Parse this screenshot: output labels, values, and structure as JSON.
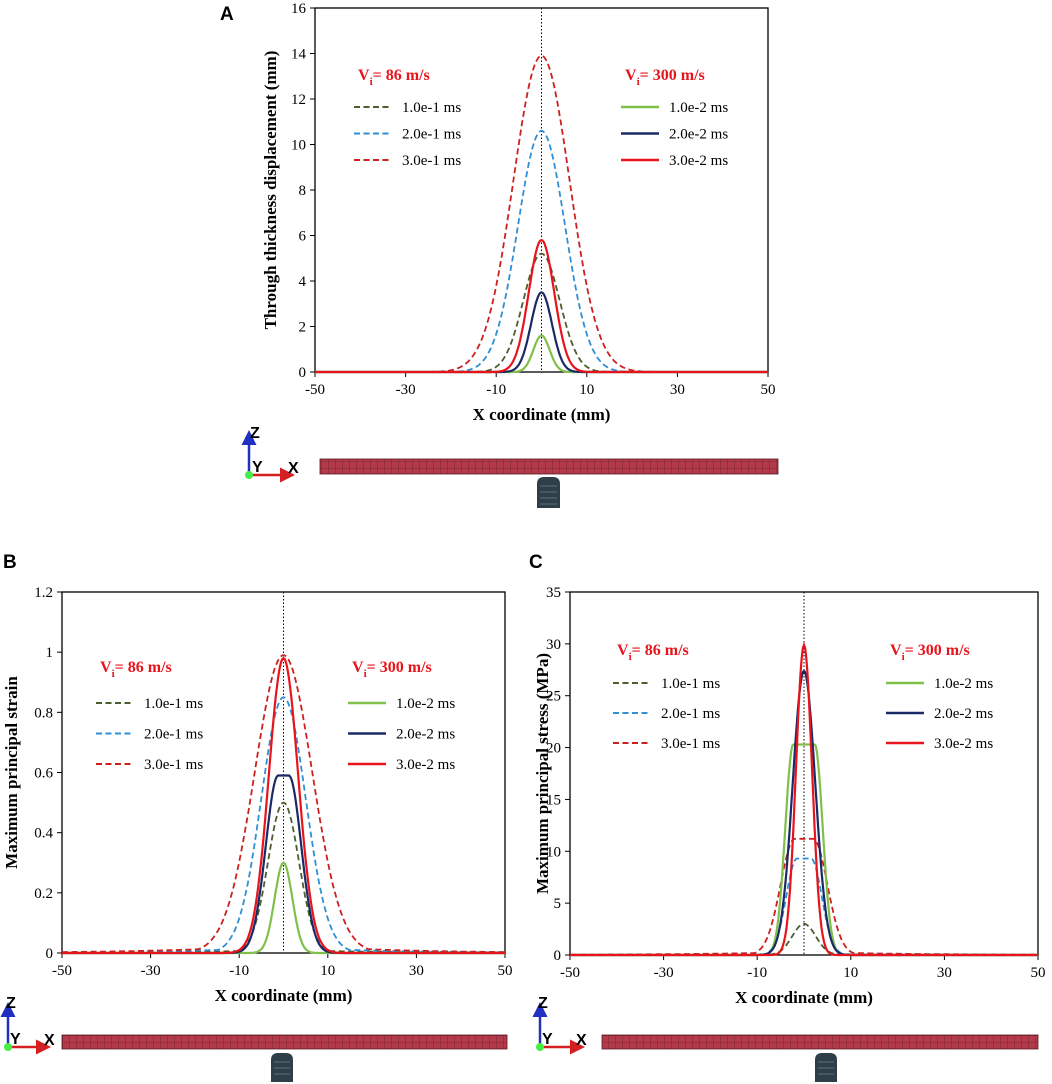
{
  "colors": {
    "dark_green": "#4a5e2e",
    "light_blue": "#2e8fd6",
    "dark_red": "#cc2020",
    "light_green": "#7fc04a",
    "navy": "#1a2a66",
    "red": "#e8141c",
    "mesh_fill": "#b23a4a",
    "mesh_line": "#5a1a24",
    "impactor": "#2f3f47"
  },
  "orientation": {
    "z": "Z",
    "y": "Y",
    "x": "X"
  },
  "chart_data": [
    {
      "id": "A",
      "panel_label": "A",
      "type": "line",
      "title": "",
      "xlabel": "X coordinate (mm)",
      "ylabel": "Through thickness displacement  (mm)",
      "xlim": [
        -50,
        50
      ],
      "ylim": [
        0,
        16
      ],
      "xticks": [
        -50,
        -30,
        -10,
        10,
        30,
        50
      ],
      "yticks": [
        0,
        2,
        4,
        6,
        8,
        10,
        12,
        14,
        16
      ],
      "legend_groups": [
        {
          "heading_main": "V",
          "heading_sub": "i",
          "heading_rest": "= 86 m/s",
          "position": "top-left",
          "entries": [
            {
              "label": "1.0e-1 ms",
              "color": "#4a5e2e",
              "dash": true
            },
            {
              "label": "2.0e-1 ms",
              "color": "#2e8fd6",
              "dash": true
            },
            {
              "label": "3.0e-1 ms",
              "color": "#cc2020",
              "dash": true
            }
          ]
        },
        {
          "heading_main": "V",
          "heading_sub": "i",
          "heading_rest": "= 300 m/s",
          "position": "top-right",
          "entries": [
            {
              "label": "1.0e-2 ms",
              "color": "#7fc04a",
              "dash": false
            },
            {
              "label": "2.0e-2 ms",
              "color": "#1a2a66",
              "dash": false
            },
            {
              "label": "3.0e-2 ms",
              "color": "#e8141c",
              "dash": false
            }
          ]
        }
      ],
      "series": [
        {
          "name": "86 m/s 1.0e-1 ms",
          "color": "#4a5e2e",
          "dash": true,
          "peak": 5.2,
          "width": 4.0,
          "floor": 0,
          "flat": 0
        },
        {
          "name": "86 m/s 2.0e-1 ms",
          "color": "#2e8fd6",
          "dash": true,
          "peak": 10.6,
          "width": 5.2,
          "floor": 0,
          "flat": 0
        },
        {
          "name": "86 m/s 3.0e-1 ms",
          "color": "#cc2020",
          "dash": true,
          "peak": 13.9,
          "width": 6.2,
          "floor": 0,
          "flat": 0
        },
        {
          "name": "300 m/s 1.0e-2 ms",
          "color": "#7fc04a",
          "dash": false,
          "peak": 1.6,
          "width": 1.8,
          "floor": 0,
          "flat": 0
        },
        {
          "name": "300 m/s 2.0e-2 ms",
          "color": "#1a2a66",
          "dash": false,
          "peak": 3.5,
          "width": 2.3,
          "floor": 0,
          "flat": 0
        },
        {
          "name": "300 m/s 3.0e-2 ms",
          "color": "#e8141c",
          "dash": false,
          "peak": 5.8,
          "width": 2.8,
          "floor": 0,
          "flat": 0
        }
      ]
    },
    {
      "id": "B",
      "panel_label": "B",
      "type": "line",
      "title": "",
      "xlabel": "X coordinate (mm)",
      "ylabel": "Maximum principal strain",
      "xlim": [
        -50,
        50
      ],
      "ylim": [
        0,
        1.2
      ],
      "xticks": [
        -50,
        -30,
        -10,
        10,
        30,
        50
      ],
      "yticks": [
        0,
        0.2,
        0.4,
        0.6,
        0.8,
        1,
        1.2
      ],
      "yticklabels": [
        "0",
        "0.2",
        "0.4",
        "0.6",
        "0.8",
        "1",
        "1.2"
      ],
      "legend_groups": [
        {
          "heading_main": "V",
          "heading_sub": "i",
          "heading_rest": "= 86 m/s",
          "position": "top-left",
          "entries": [
            {
              "label": "1.0e-1 ms",
              "color": "#4a5e2e",
              "dash": true
            },
            {
              "label": "2.0e-1 ms",
              "color": "#2e8fd6",
              "dash": true
            },
            {
              "label": "3.0e-1 ms",
              "color": "#cc2020",
              "dash": true
            }
          ]
        },
        {
          "heading_main": "V",
          "heading_sub": "i",
          "heading_rest": "= 300 m/s",
          "position": "top-right",
          "entries": [
            {
              "label": "1.0e-2 ms",
              "color": "#7fc04a",
              "dash": false
            },
            {
              "label": "2.0e-2 ms",
              "color": "#1a2a66",
              "dash": false
            },
            {
              "label": "3.0e-2 ms",
              "color": "#e8141c",
              "dash": false
            }
          ]
        }
      ],
      "series": [
        {
          "name": "86 m/s 1.0e-1 ms",
          "color": "#4a5e2e",
          "dash": true,
          "peak": 0.5,
          "width": 3.5,
          "floor": 0.01,
          "flat": 0
        },
        {
          "name": "86 m/s 2.0e-1 ms",
          "color": "#2e8fd6",
          "dash": true,
          "peak": 0.85,
          "width": 5.0,
          "floor": 0.02,
          "flat": 0
        },
        {
          "name": "86 m/s 3.0e-1 ms",
          "color": "#cc2020",
          "dash": true,
          "peak": 0.99,
          "width": 6.5,
          "floor": 0.03,
          "flat": 0
        },
        {
          "name": "300 m/s 1.0e-2 ms",
          "color": "#7fc04a",
          "dash": false,
          "peak": 0.3,
          "width": 2.0,
          "floor": 0,
          "flat": 0
        },
        {
          "name": "300 m/s 2.0e-2 ms",
          "color": "#1a2a66",
          "dash": false,
          "peak": 0.59,
          "width": 2.8,
          "floor": 0,
          "flat": 1.2
        },
        {
          "name": "300 m/s 3.0e-2 ms",
          "color": "#e8141c",
          "dash": false,
          "peak": 0.98,
          "width": 3.3,
          "floor": 0,
          "flat": 0
        }
      ]
    },
    {
      "id": "C",
      "panel_label": "C",
      "type": "line",
      "title": "",
      "xlabel": "X coordinate (mm)",
      "ylabel": "Maximum principal stress (MPa)",
      "xlim": [
        -50,
        50
      ],
      "ylim": [
        0,
        35
      ],
      "xticks": [
        -50,
        -30,
        -10,
        10,
        30,
        50
      ],
      "yticks": [
        0,
        5,
        10,
        15,
        20,
        25,
        30,
        35
      ],
      "legend_groups": [
        {
          "heading_main": "V",
          "heading_sub": "i",
          "heading_rest": "= 86 m/s",
          "position": "top-left",
          "entries": [
            {
              "label": "1.0e-1 ms",
              "color": "#4a5e2e",
              "dash": true
            },
            {
              "label": "2.0e-1 ms",
              "color": "#2e8fd6",
              "dash": true
            },
            {
              "label": "3.0e-1 ms",
              "color": "#cc2020",
              "dash": true
            }
          ]
        },
        {
          "heading_main": "V",
          "heading_sub": "i",
          "heading_rest": "= 300 m/s",
          "position": "top-right",
          "entries": [
            {
              "label": "1.0e-2 ms",
              "color": "#7fc04a",
              "dash": false
            },
            {
              "label": "2.0e-2 ms",
              "color": "#1a2a66",
              "dash": false
            },
            {
              "label": "3.0e-2 ms",
              "color": "#e8141c",
              "dash": false
            }
          ]
        }
      ],
      "series": [
        {
          "name": "86 m/s 1.0e-1 ms",
          "color": "#4a5e2e",
          "dash": true,
          "peak": 3.0,
          "width": 2.5,
          "floor": 0,
          "flat": 0
        },
        {
          "name": "86 m/s 2.0e-1 ms",
          "color": "#2e8fd6",
          "dash": true,
          "peak": 9.3,
          "width": 2.3,
          "floor": 0.1,
          "flat": 1.5
        },
        {
          "name": "86 m/s 3.0e-1 ms",
          "color": "#cc2020",
          "dash": true,
          "peak": 11.2,
          "width": 3.0,
          "floor": 0.3,
          "flat": 2.0
        },
        {
          "name": "300 m/s 1.0e-2 ms",
          "color": "#7fc04a",
          "dash": false,
          "peak": 20.3,
          "width": 1.7,
          "floor": 0,
          "flat": 2.3
        },
        {
          "name": "300 m/s 2.0e-2 ms",
          "color": "#1a2a66",
          "dash": false,
          "peak": 27.4,
          "width": 2.4,
          "floor": 0,
          "flat": 0
        },
        {
          "name": "300 m/s 3.0e-2 ms",
          "color": "#e8141c",
          "dash": false,
          "peak": 29.9,
          "width": 1.7,
          "floor": 0,
          "flat": 0
        }
      ]
    }
  ]
}
